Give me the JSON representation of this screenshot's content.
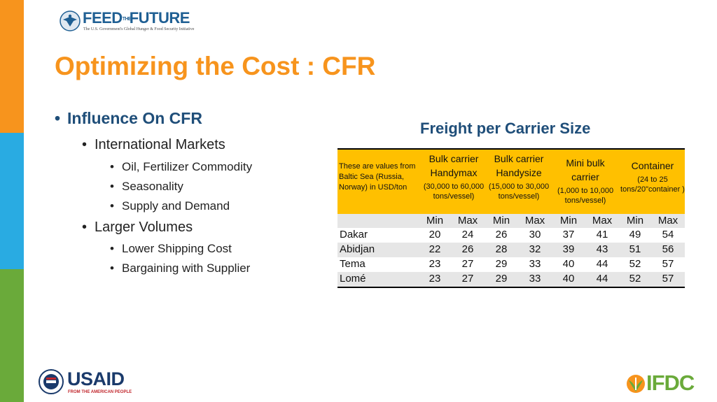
{
  "logos": {
    "ftf_word_left": "FEED",
    "ftf_word_mid": "THE",
    "ftf_word_right": "FUTURE",
    "ftf_tagline": "The U.S. Government's Global Hunger & Food Security Initiative",
    "usaid_word": "USAID",
    "usaid_tagline": "FROM THE AMERICAN PEOPLE",
    "ifdc_word": "IFDC"
  },
  "slide": {
    "title": "Optimizing the Cost : CFR",
    "bullets": [
      {
        "level": 1,
        "text": "Influence On CFR"
      },
      {
        "level": 2,
        "text": "International Markets"
      },
      {
        "level": 3,
        "text": "Oil, Fertilizer Commodity"
      },
      {
        "level": 3,
        "text": "Seasonality"
      },
      {
        "level": 3,
        "text": "Supply and Demand"
      },
      {
        "level": 2,
        "text": "Larger Volumes"
      },
      {
        "level": 3,
        "text": "Lower Shipping Cost"
      },
      {
        "level": 3,
        "text": "Bargaining with Supplier"
      }
    ]
  },
  "table": {
    "title": "Freight per Carrier Size",
    "note": "These are values from Baltic Sea (Russia, Norway) in USD/ton",
    "columns": [
      {
        "name": "Bulk carrier Handymax",
        "sub": "(30,000 to 60,000 tons/vessel)"
      },
      {
        "name": "Bulk carrier Handysize",
        "sub": "(15,000 to 30,000 tons/vessel)"
      },
      {
        "name": "Mini bulk carrier",
        "sub": "(1,000 to 10,000 tons/vessel)"
      },
      {
        "name": "Container",
        "sub": "(24 to 25 tons/20\"container )"
      }
    ],
    "minmax": [
      "Min",
      "Max",
      "Min",
      "Max",
      "Min",
      "Max",
      "Min",
      "Max"
    ],
    "rows": [
      {
        "port": "Dakar",
        "values": [
          "20",
          "24",
          "26",
          "30",
          "37",
          "41",
          "49",
          "54"
        ]
      },
      {
        "port": "Abidjan",
        "values": [
          "22",
          "26",
          "28",
          "32",
          "39",
          "43",
          "51",
          "56"
        ]
      },
      {
        "port": "Tema",
        "values": [
          "23",
          "27",
          "29",
          "33",
          "40",
          "44",
          "52",
          "57"
        ]
      },
      {
        "port": "Lomé",
        "values": [
          "23",
          "27",
          "29",
          "33",
          "40",
          "44",
          "52",
          "57"
        ]
      }
    ]
  },
  "colors": {
    "accent_orange": "#f7941d",
    "heading_blue": "#1f4e79",
    "table_header": "#ffc000",
    "strip_blue": "#29abe2",
    "strip_green": "#6aaa3a"
  }
}
